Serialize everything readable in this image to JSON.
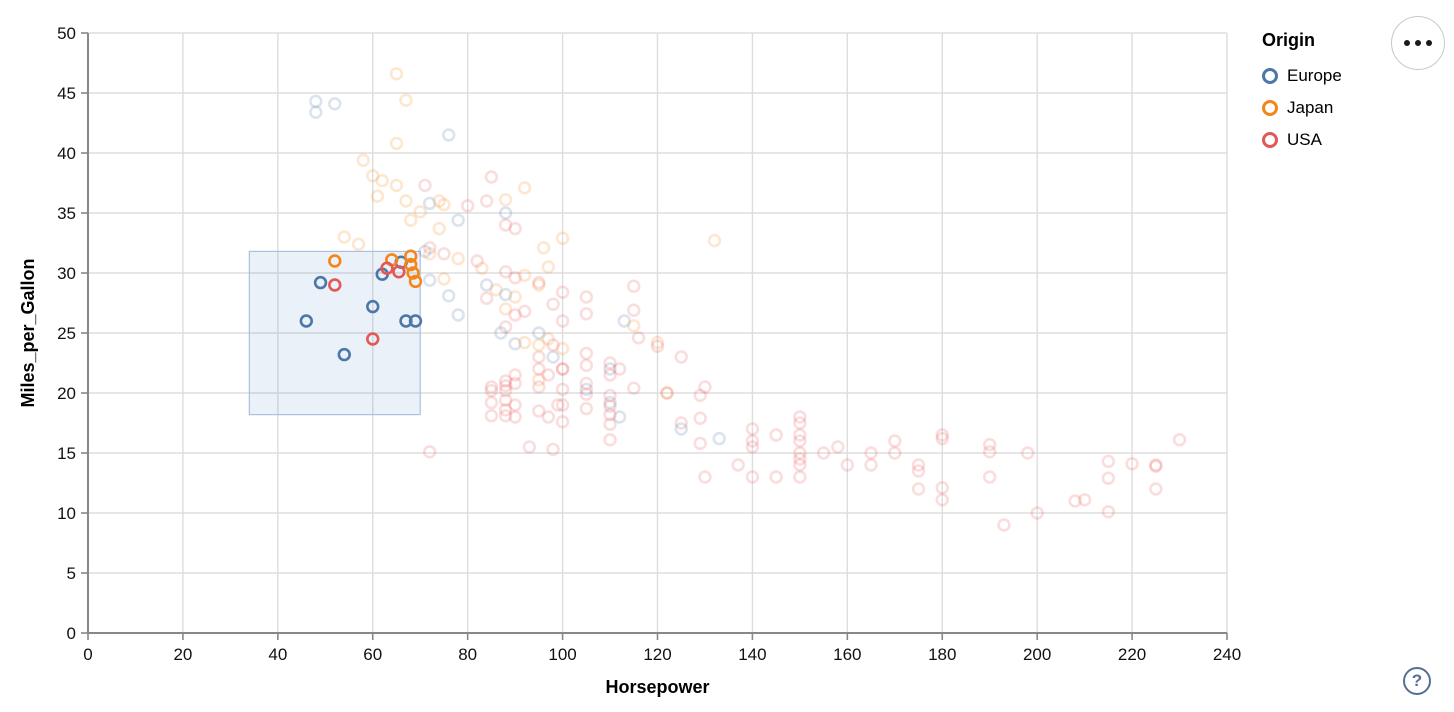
{
  "chart_data": {
    "type": "scatter",
    "xlabel": "Horsepower",
    "ylabel": "Miles_per_Gallon",
    "xlim": [
      0,
      240
    ],
    "ylim": [
      0,
      50
    ],
    "x_ticks": [
      0,
      20,
      40,
      60,
      80,
      100,
      120,
      140,
      160,
      180,
      200,
      220,
      240
    ],
    "y_ticks": [
      0,
      5,
      10,
      15,
      20,
      25,
      30,
      35,
      40,
      45,
      50
    ],
    "grid": true,
    "marker": {
      "shape": "circle-stroked",
      "radius": 5.4,
      "stroke_width": 2.6
    },
    "faded_opacity": 0.2,
    "selected_opacity": 1,
    "brush": {
      "hp": [
        34,
        70
      ],
      "mpg": [
        18.2,
        31.8
      ],
      "fill": "#5d89c5",
      "fill_opacity": 0.12,
      "stroke": "#a9c0e0"
    },
    "legend": {
      "title": "Origin",
      "position": "top-right",
      "entries": [
        {
          "label": "Europe",
          "color": "#4c78a8"
        },
        {
          "label": "Japan",
          "color": "#f58518"
        },
        {
          "label": "USA",
          "color": "#e45756"
        }
      ]
    },
    "series": [
      {
        "name": "Europe",
        "color": "#4c78a8",
        "points": [
          [
            46,
            26
          ],
          [
            49,
            29.2
          ],
          [
            54,
            23.2
          ],
          [
            60,
            27.2
          ],
          [
            62,
            29.9
          ],
          [
            66,
            30.9
          ],
          [
            67,
            26
          ],
          [
            69,
            26
          ],
          [
            48,
            44.3
          ],
          [
            48,
            43.4
          ],
          [
            52,
            44.1
          ],
          [
            76,
            41.5
          ],
          [
            72,
            35.8
          ],
          [
            88,
            35
          ],
          [
            78,
            34.4
          ],
          [
            71,
            31.8
          ],
          [
            72,
            29.4
          ],
          [
            76,
            28.1
          ],
          [
            84,
            29
          ],
          [
            88,
            28.2
          ],
          [
            78,
            26.5
          ],
          [
            87,
            25
          ],
          [
            90,
            24.1
          ],
          [
            95,
            25
          ],
          [
            113,
            26
          ],
          [
            98,
            23
          ],
          [
            110,
            22
          ],
          [
            105,
            20.3
          ],
          [
            110,
            19.2
          ],
          [
            112,
            18
          ],
          [
            125,
            17
          ],
          [
            133,
            16.2
          ]
        ]
      },
      {
        "name": "Japan",
        "color": "#f58518",
        "points": [
          [
            52,
            31
          ],
          [
            64,
            31.1
          ],
          [
            68,
            31.4
          ],
          [
            68,
            30.7
          ],
          [
            68.5,
            30
          ],
          [
            69,
            29.3
          ],
          [
            65,
            46.6
          ],
          [
            67,
            44.4
          ],
          [
            65,
            40.8
          ],
          [
            58,
            39.4
          ],
          [
            60,
            38.1
          ],
          [
            62,
            37.7
          ],
          [
            65,
            37.3
          ],
          [
            61,
            36.4
          ],
          [
            67,
            36
          ],
          [
            74,
            36
          ],
          [
            75,
            35.7
          ],
          [
            88,
            36.1
          ],
          [
            92,
            37.1
          ],
          [
            70,
            35.1
          ],
          [
            68,
            34.4
          ],
          [
            54,
            33
          ],
          [
            57,
            32.4
          ],
          [
            74,
            33.7
          ],
          [
            96,
            32.1
          ],
          [
            100,
            32.9
          ],
          [
            132,
            32.7
          ],
          [
            72,
            31.6
          ],
          [
            78,
            31.2
          ],
          [
            83,
            30.4
          ],
          [
            92,
            29.8
          ],
          [
            97,
            30.5
          ],
          [
            75,
            29.5
          ],
          [
            86,
            28.6
          ],
          [
            95,
            29
          ],
          [
            90,
            28
          ],
          [
            88,
            27
          ],
          [
            95,
            24
          ],
          [
            97,
            24.5
          ],
          [
            92,
            24.2
          ],
          [
            115,
            25.6
          ],
          [
            120,
            24.2
          ],
          [
            100,
            23.7
          ],
          [
            122,
            20
          ],
          [
            95,
            21.1
          ]
        ]
      },
      {
        "name": "USA",
        "color": "#e45756",
        "points": [
          [
            52,
            29
          ],
          [
            60,
            24.5
          ],
          [
            63,
            30.4
          ],
          [
            65.5,
            30.1
          ],
          [
            85,
            38
          ],
          [
            80,
            35.6
          ],
          [
            84,
            36
          ],
          [
            88,
            34
          ],
          [
            90,
            33.7
          ],
          [
            71,
            37.3
          ],
          [
            72,
            32.1
          ],
          [
            75,
            31.6
          ],
          [
            82,
            31
          ],
          [
            88,
            30.1
          ],
          [
            90,
            29.6
          ],
          [
            95,
            29.2
          ],
          [
            105,
            28
          ],
          [
            115,
            28.9
          ],
          [
            100,
            28.4
          ],
          [
            84,
            27.9
          ],
          [
            92,
            26.8
          ],
          [
            105,
            26.6
          ],
          [
            115,
            26.9
          ],
          [
            98,
            27.4
          ],
          [
            100,
            26
          ],
          [
            105,
            23.3
          ],
          [
            105,
            22.3
          ],
          [
            90,
            26.5
          ],
          [
            88,
            25.5
          ],
          [
            95,
            23
          ],
          [
            100,
            22
          ],
          [
            98,
            24
          ],
          [
            110,
            22.5
          ],
          [
            120,
            23.9
          ],
          [
            125,
            23
          ],
          [
            116,
            24.6
          ],
          [
            112,
            22
          ],
          [
            85,
            20.5
          ],
          [
            85,
            20.2
          ],
          [
            85,
            19.2
          ],
          [
            85,
            18.1
          ],
          [
            88,
            21
          ],
          [
            88,
            20.6
          ],
          [
            88,
            20.2
          ],
          [
            88,
            19.4
          ],
          [
            88,
            18.6
          ],
          [
            88,
            18.1
          ],
          [
            90,
            21.5
          ],
          [
            90,
            20.8
          ],
          [
            90,
            19
          ],
          [
            90,
            18
          ],
          [
            95,
            22
          ],
          [
            95,
            20.5
          ],
          [
            95,
            18.5
          ],
          [
            97,
            21.5
          ],
          [
            97,
            18
          ],
          [
            100,
            22
          ],
          [
            100,
            20.3
          ],
          [
            100,
            19
          ],
          [
            100,
            17.6
          ],
          [
            105,
            20.8
          ],
          [
            105,
            19.9
          ],
          [
            105,
            18.7
          ],
          [
            110,
            21.5
          ],
          [
            110,
            19.8
          ],
          [
            110,
            18.9
          ],
          [
            110,
            18.2
          ],
          [
            110,
            17.4
          ],
          [
            110,
            16.1
          ],
          [
            115,
            20.4
          ],
          [
            122,
            20
          ],
          [
            129,
            19.8
          ],
          [
            130,
            20.5
          ],
          [
            129,
            17.9
          ],
          [
            99,
            19
          ],
          [
            72,
            15.1
          ],
          [
            93,
            15.5
          ],
          [
            98,
            15.3
          ],
          [
            125,
            17.5
          ],
          [
            129,
            15.8
          ],
          [
            130,
            13
          ],
          [
            137,
            14
          ],
          [
            140,
            17
          ],
          [
            140,
            16
          ],
          [
            140,
            15.5
          ],
          [
            140,
            13
          ],
          [
            145,
            16.5
          ],
          [
            145,
            13
          ],
          [
            150,
            18
          ],
          [
            150,
            17.5
          ],
          [
            150,
            16.5
          ],
          [
            150,
            16
          ],
          [
            150,
            15
          ],
          [
            150,
            14.5
          ],
          [
            150,
            14
          ],
          [
            150,
            13
          ],
          [
            155,
            15
          ],
          [
            158,
            15.5
          ],
          [
            160,
            14
          ],
          [
            165,
            15
          ],
          [
            165,
            14
          ],
          [
            170,
            16
          ],
          [
            170,
            15
          ],
          [
            175,
            14
          ],
          [
            175,
            13.5
          ],
          [
            175,
            12
          ],
          [
            180,
            12.1
          ],
          [
            180,
            11.1
          ],
          [
            190,
            13
          ],
          [
            193,
            9
          ],
          [
            200,
            10
          ],
          [
            208,
            11
          ],
          [
            210,
            11.1
          ],
          [
            215,
            10.1
          ],
          [
            180,
            16.5
          ],
          [
            180,
            16.2
          ],
          [
            190,
            15.7
          ],
          [
            190,
            15.1
          ],
          [
            198,
            15
          ],
          [
            215,
            14.3
          ],
          [
            215,
            12.9
          ],
          [
            220,
            14.1
          ],
          [
            225,
            14
          ],
          [
            225,
            13.9
          ],
          [
            225,
            12
          ],
          [
            230,
            16.1
          ]
        ]
      }
    ]
  },
  "controls": {
    "menu_tooltip": "options",
    "help_label": "?"
  }
}
